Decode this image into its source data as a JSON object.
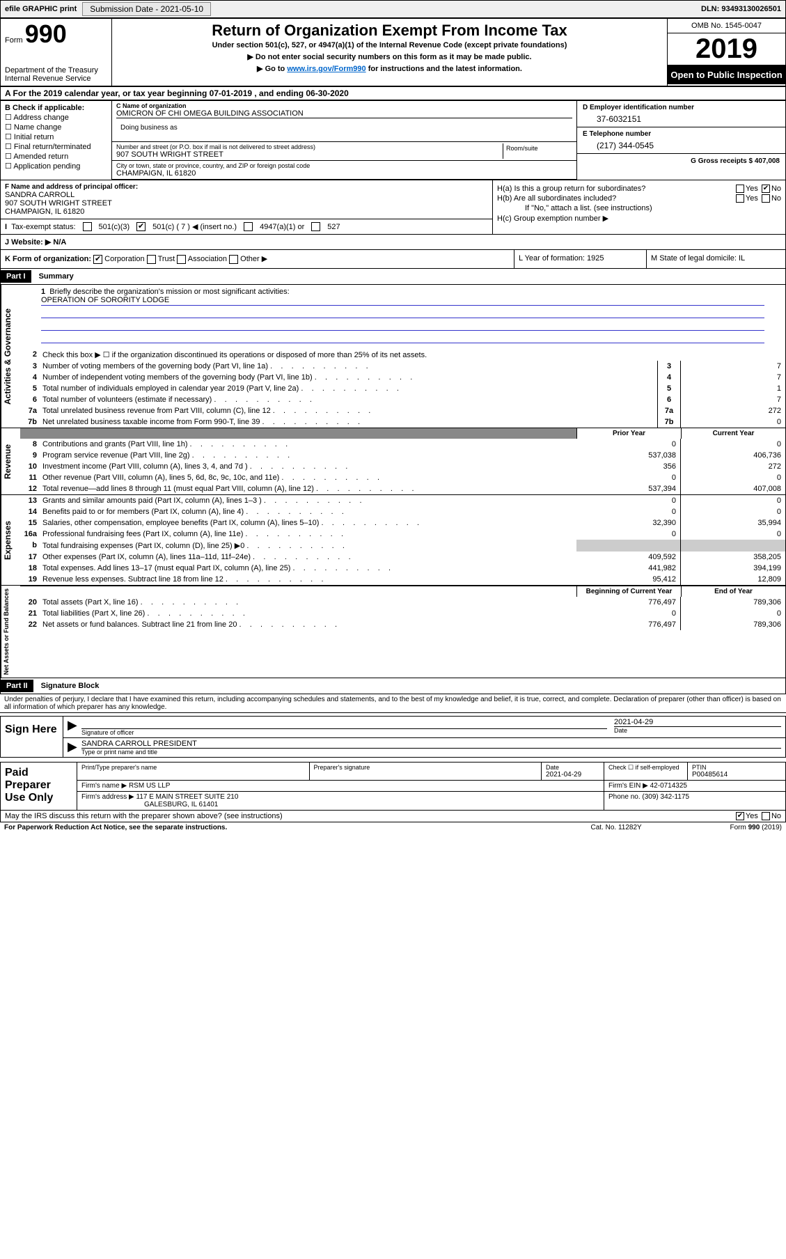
{
  "topbar": {
    "efile": "efile GRAPHIC print",
    "sub_label": "Submission Date - 2021-05-10",
    "dln_label": "DLN: 93493130026501"
  },
  "header": {
    "form_word": "Form",
    "form_num": "990",
    "dept": "Department of the Treasury",
    "irs": "Internal Revenue Service",
    "title": "Return of Organization Exempt From Income Tax",
    "sub1": "Under section 501(c), 527, or 4947(a)(1) of the Internal Revenue Code (except private foundations)",
    "sub2": "Do not enter social security numbers on this form as it may be made public.",
    "sub3_pre": "Go to ",
    "sub3_link": "www.irs.gov/Form990",
    "sub3_post": " for instructions and the latest information.",
    "omb": "OMB No. 1545-0047",
    "year": "2019",
    "inspect": "Open to Public Inspection"
  },
  "rowA": "A For the 2019 calendar year, or tax year beginning 07-01-2019    , and ending 06-30-2020",
  "colB": {
    "hdr": "B Check if applicable:",
    "opts": [
      "Address change",
      "Name change",
      "Initial return",
      "Final return/terminated",
      "Amended return",
      "Application pending"
    ]
  },
  "name_block": {
    "c_lbl": "C Name of organization",
    "c_val": "OMICRON OF CHI OMEGA BUILDING ASSOCIATION",
    "dba_lbl": "Doing business as",
    "addr_lbl": "Number and street (or P.O. box if mail is not delivered to street address)",
    "addr_val": "907 SOUTH WRIGHT STREET",
    "room_lbl": "Room/suite",
    "city_lbl": "City or town, state or province, country, and ZIP or foreign postal code",
    "city_val": "CHAMPAIGN, IL  61820"
  },
  "colD": {
    "d_lbl": "D Employer identification number",
    "d_val": "37-6032151",
    "e_lbl": "E Telephone number",
    "e_val": "(217) 344-0545",
    "g_lbl": "G Gross receipts $ 407,008"
  },
  "F": {
    "lbl": "F Name and address of principal officer:",
    "name": "SANDRA CARROLL",
    "addr1": "907 SOUTH WRIGHT STREET",
    "addr2": "CHAMPAIGN, IL  61820"
  },
  "H": {
    "a": "H(a)  Is this a group return for subordinates?",
    "b": "H(b)  Are all subordinates included?",
    "b2": "If \"No,\" attach a list. (see instructions)",
    "c": "H(c)  Group exemption number ▶"
  },
  "rowI": {
    "lbl": "Tax-exempt status:",
    "o1": "501(c)(3)",
    "o2": "501(c) ( 7 ) ◀ (insert no.)",
    "o3": "4947(a)(1) or",
    "o4": "527"
  },
  "rowJ": "J   Website: ▶  N/A",
  "rowK": {
    "k_lbl": "K Form of organization:",
    "k_opts": [
      "Corporation",
      "Trust",
      "Association",
      "Other ▶"
    ],
    "l": "L Year of formation: 1925",
    "m": "M State of legal domicile: IL"
  },
  "partI": {
    "hdr": "Part I",
    "title": "Summary"
  },
  "mission": {
    "q": "Briefly describe the organization's mission or most significant activities:",
    "a": "OPERATION OF SORORITY LODGE"
  },
  "line2": "Check this box ▶ ☐  if the organization discontinued its operations or disposed of more than 25% of its net assets.",
  "lines_single": [
    {
      "n": "3",
      "d": "Number of voting members of the governing body (Part VI, line 1a)",
      "v": "7"
    },
    {
      "n": "4",
      "d": "Number of independent voting members of the governing body (Part VI, line 1b)",
      "v": "7"
    },
    {
      "n": "5",
      "d": "Total number of individuals employed in calendar year 2019 (Part V, line 2a)",
      "v": "1"
    },
    {
      "n": "6",
      "d": "Total number of volunteers (estimate if necessary)",
      "v": "7"
    },
    {
      "n": "7a",
      "d": "Total unrelated business revenue from Part VIII, column (C), line 12",
      "v": "272"
    },
    {
      "n": "7b",
      "d": "Net unrelated business taxable income from Form 990-T, line 39",
      "v": "0"
    }
  ],
  "hdr_prior": "Prior Year",
  "hdr_curr": "Current Year",
  "revenue": [
    {
      "n": "8",
      "d": "Contributions and grants (Part VIII, line 1h)",
      "p": "0",
      "c": "0"
    },
    {
      "n": "9",
      "d": "Program service revenue (Part VIII, line 2g)",
      "p": "537,038",
      "c": "406,736"
    },
    {
      "n": "10",
      "d": "Investment income (Part VIII, column (A), lines 3, 4, and 7d )",
      "p": "356",
      "c": "272"
    },
    {
      "n": "11",
      "d": "Other revenue (Part VIII, column (A), lines 5, 6d, 8c, 9c, 10c, and 11e)",
      "p": "0",
      "c": "0"
    },
    {
      "n": "12",
      "d": "Total revenue—add lines 8 through 11 (must equal Part VIII, column (A), line 12)",
      "p": "537,394",
      "c": "407,008"
    }
  ],
  "expenses": [
    {
      "n": "13",
      "d": "Grants and similar amounts paid (Part IX, column (A), lines 1–3 )",
      "p": "0",
      "c": "0"
    },
    {
      "n": "14",
      "d": "Benefits paid to or for members (Part IX, column (A), line 4)",
      "p": "0",
      "c": "0"
    },
    {
      "n": "15",
      "d": "Salaries, other compensation, employee benefits (Part IX, column (A), lines 5–10)",
      "p": "32,390",
      "c": "35,994"
    },
    {
      "n": "16a",
      "d": "Professional fundraising fees (Part IX, column (A), line 11e)",
      "p": "0",
      "c": "0"
    },
    {
      "n": "b",
      "d": "Total fundraising expenses (Part IX, column (D), line 25) ▶0",
      "p": "",
      "c": "",
      "grey": true
    },
    {
      "n": "17",
      "d": "Other expenses (Part IX, column (A), lines 11a–11d, 11f–24e)",
      "p": "409,592",
      "c": "358,205"
    },
    {
      "n": "18",
      "d": "Total expenses. Add lines 13–17 (must equal Part IX, column (A), line 25)",
      "p": "441,982",
      "c": "394,199"
    },
    {
      "n": "19",
      "d": "Revenue less expenses. Subtract line 18 from line 12",
      "p": "95,412",
      "c": "12,809"
    }
  ],
  "hdr_beg": "Beginning of Current Year",
  "hdr_end": "End of Year",
  "netassets": [
    {
      "n": "20",
      "d": "Total assets (Part X, line 16)",
      "p": "776,497",
      "c": "789,306"
    },
    {
      "n": "21",
      "d": "Total liabilities (Part X, line 26)",
      "p": "0",
      "c": "0"
    },
    {
      "n": "22",
      "d": "Net assets or fund balances. Subtract line 21 from line 20",
      "p": "776,497",
      "c": "789,306"
    }
  ],
  "vtabs": {
    "gov": "Activities & Governance",
    "rev": "Revenue",
    "exp": "Expenses",
    "net": "Net Assets or Fund Balances"
  },
  "partII": {
    "hdr": "Part II",
    "title": "Signature Block"
  },
  "sig_decl": "Under penalties of perjury, I declare that I have examined this return, including accompanying schedules and statements, and to the best of my knowledge and belief, it is true, correct, and complete. Declaration of preparer (other than officer) is based on all information of which preparer has any knowledge.",
  "sign": {
    "here": "Sign Here",
    "sig_lbl": "Signature of officer",
    "date_lbl": "Date",
    "date_val": "2021-04-29",
    "name": "SANDRA CARROLL PRESIDENT",
    "name_lbl": "Type or print name and title"
  },
  "prep": {
    "title": "Paid Preparer Use Only",
    "r1": {
      "c1_lbl": "Print/Type preparer's name",
      "c2_lbl": "Preparer's signature",
      "c3_lbl": "Date",
      "c3_val": "2021-04-29",
      "c4_lbl": "Check ☐ if self-employed",
      "c5_lbl": "PTIN",
      "c5_val": "P00485614"
    },
    "r2": {
      "firm_lbl": "Firm's name    ▶",
      "firm_val": "RSM US LLP",
      "ein_lbl": "Firm's EIN ▶",
      "ein_val": "42-0714325"
    },
    "r3": {
      "addr_lbl": "Firm's address ▶",
      "addr_val1": "117 E MAIN STREET SUITE 210",
      "addr_val2": "GALESBURG, IL  61401",
      "phone_lbl": "Phone no.",
      "phone_val": "(309) 342-1175"
    }
  },
  "discuss": "May the IRS discuss this return with the preparer shown above? (see instructions)",
  "footer": {
    "l": "For Paperwork Reduction Act Notice, see the separate instructions.",
    "c": "Cat. No. 11282Y",
    "r": "Form 990 (2019)"
  }
}
